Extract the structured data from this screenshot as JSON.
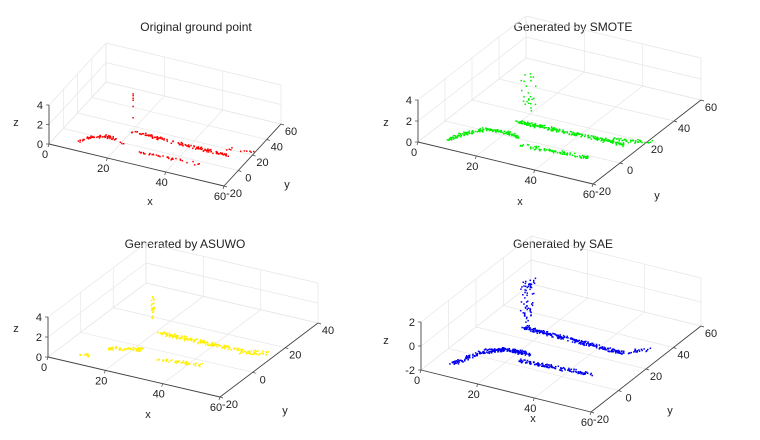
{
  "chart_data": [
    {
      "type": "scatter",
      "title": "Original ground point",
      "xlabel": "x",
      "ylabel": "y",
      "zlabel": "z",
      "xlim": [
        0,
        60
      ],
      "ylim": [
        -20,
        60
      ],
      "zlim": [
        0,
        4
      ],
      "xticks": [
        "0",
        "20",
        "40",
        "60"
      ],
      "yticks": [
        "-20",
        "0",
        "20",
        "40",
        "60"
      ],
      "zticks": [
        "0",
        "2",
        "4"
      ],
      "color": "#ff0000",
      "grid": true,
      "clusters": [
        {
          "kind": "arc",
          "x": [
            8,
            22
          ],
          "y": [
            -14,
            -4
          ],
          "z": [
            0.2,
            0.3
          ],
          "n": 55
        },
        {
          "kind": "line",
          "x": [
            22,
            54
          ],
          "y": [
            6,
            9
          ],
          "z": [
            0.8,
            0.4
          ],
          "n": 120
        },
        {
          "kind": "line",
          "x": [
            28,
            48
          ],
          "y": [
            -6,
            -3
          ],
          "z": [
            0.1,
            0.0
          ],
          "n": 35
        },
        {
          "kind": "line",
          "x": [
            52,
            60
          ],
          "y": [
            18,
            22
          ],
          "z": [
            0.2,
            0.2
          ],
          "n": 10
        },
        {
          "kind": "vertical",
          "x": [
            22,
            22
          ],
          "y": [
            8,
            8
          ],
          "z": [
            1.5,
            4.5
          ],
          "n": 6
        }
      ]
    },
    {
      "type": "scatter",
      "title": "Generated by SMOTE",
      "xlabel": "x",
      "ylabel": "y",
      "zlabel": "z",
      "xlim": [
        0,
        60
      ],
      "ylim": [
        -20,
        60
      ],
      "zlim": [
        0,
        4
      ],
      "xticks": [
        "0",
        "20",
        "40",
        "60"
      ],
      "yticks": [
        "-20",
        "0",
        "20",
        "40",
        "60"
      ],
      "zticks": [
        "0",
        "2",
        "4"
      ],
      "color": "#00ee00",
      "grid": true,
      "clusters": [
        {
          "kind": "arc",
          "x": [
            8,
            26
          ],
          "y": [
            -14,
            -2
          ],
          "z": [
            0.2,
            0.4
          ],
          "n": 150
        },
        {
          "kind": "line",
          "x": [
            22,
            56
          ],
          "y": [
            6,
            12
          ],
          "z": [
            0.8,
            0.3
          ],
          "n": 220
        },
        {
          "kind": "line",
          "x": [
            28,
            50
          ],
          "y": [
            -6,
            -2
          ],
          "z": [
            0.2,
            0.0
          ],
          "n": 90
        },
        {
          "kind": "line",
          "x": [
            50,
            62
          ],
          "y": [
            14,
            20
          ],
          "z": [
            0.2,
            0.1
          ],
          "n": 40
        },
        {
          "kind": "vertical",
          "x": [
            22,
            26
          ],
          "y": [
            8,
            12
          ],
          "z": [
            1.5,
            5.0
          ],
          "n": 25
        }
      ]
    },
    {
      "type": "scatter",
      "title": "Generated by ASUWO",
      "xlabel": "x",
      "ylabel": "y",
      "zlabel": "z",
      "xlim": [
        0,
        60
      ],
      "ylim": [
        -20,
        40
      ],
      "zlim": [
        0,
        4
      ],
      "xticks": [
        "0",
        "20",
        "40",
        "60"
      ],
      "yticks": [
        "-20",
        "0",
        "20",
        "40"
      ],
      "zticks": [
        "0",
        "2",
        "4"
      ],
      "color": "#ffee00",
      "grid": true,
      "clusters": [
        {
          "kind": "line",
          "x": [
            8,
            10
          ],
          "y": [
            -14,
            -13
          ],
          "z": [
            0.0,
            0.0
          ],
          "n": 12
        },
        {
          "kind": "line",
          "x": [
            14,
            24
          ],
          "y": [
            -8,
            -4
          ],
          "z": [
            0.3,
            0.4
          ],
          "n": 60
        },
        {
          "kind": "line",
          "x": [
            24,
            50
          ],
          "y": [
            6,
            10
          ],
          "z": [
            0.8,
            0.3
          ],
          "n": 160
        },
        {
          "kind": "line",
          "x": [
            30,
            44
          ],
          "y": [
            -6,
            -3
          ],
          "z": [
            0.1,
            0.0
          ],
          "n": 50
        },
        {
          "kind": "line",
          "x": [
            50,
            58
          ],
          "y": [
            10,
            14
          ],
          "z": [
            0.1,
            0.1
          ],
          "n": 40
        },
        {
          "kind": "vertical",
          "x": [
            21,
            22
          ],
          "y": [
            6,
            7
          ],
          "z": [
            2.0,
            4.2
          ],
          "n": 25
        }
      ]
    },
    {
      "type": "scatter",
      "title": "Generated by SAE",
      "xlabel": "x",
      "ylabel": "y",
      "zlabel": "z",
      "xlim": [
        0,
        60
      ],
      "ylim": [
        -20,
        60
      ],
      "zlim": [
        -2,
        2
      ],
      "xticks": [
        "0",
        "20",
        "40",
        "60"
      ],
      "yticks": [
        "-20",
        "0",
        "20",
        "40",
        "60"
      ],
      "zticks": [
        "-2",
        "0",
        "2"
      ],
      "color": "#0000ee",
      "grid": true,
      "clusters": [
        {
          "kind": "arc",
          "x": [
            8,
            30
          ],
          "y": [
            -14,
            -2
          ],
          "z": [
            -1.6,
            -0.6
          ],
          "n": 220
        },
        {
          "kind": "line",
          "x": [
            24,
            56
          ],
          "y": [
            6,
            12
          ],
          "z": [
            0.6,
            -0.2
          ],
          "n": 260
        },
        {
          "kind": "line",
          "x": [
            28,
            52
          ],
          "y": [
            -6,
            -2
          ],
          "z": [
            -0.8,
            -1.0
          ],
          "n": 120
        },
        {
          "kind": "line",
          "x": [
            56,
            62
          ],
          "y": [
            14,
            20
          ],
          "z": [
            -0.3,
            -0.3
          ],
          "n": 20
        },
        {
          "kind": "vertical",
          "x": [
            22,
            26
          ],
          "y": [
            6,
            10
          ],
          "z": [
            0.4,
            4.5
          ],
          "n": 70
        }
      ]
    }
  ]
}
